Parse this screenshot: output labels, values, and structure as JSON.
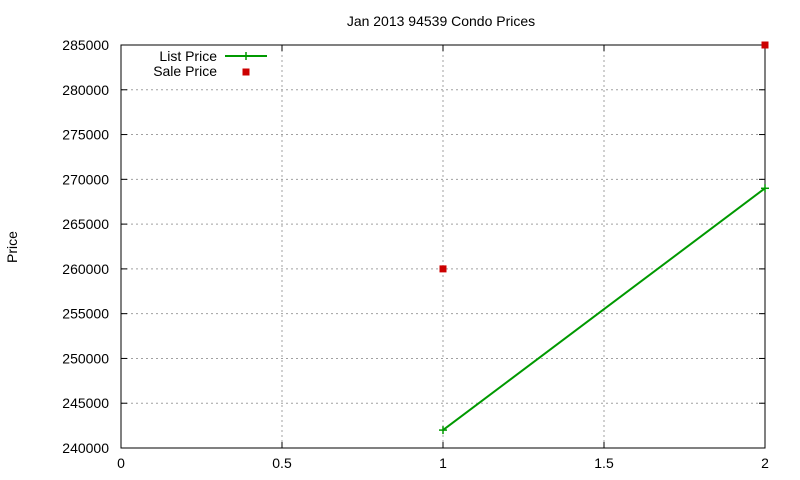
{
  "chart_data": {
    "type": "line",
    "title": "Jan 2013 94539 Condo Prices",
    "xlabel": "",
    "ylabel": "Price",
    "xlim": [
      0,
      2
    ],
    "ylim": [
      240000,
      285000
    ],
    "x_ticks": [
      0,
      0.5,
      1,
      1.5,
      2
    ],
    "x_tick_labels": [
      "0",
      "0.5",
      "1",
      "1.5",
      "2"
    ],
    "y_ticks": [
      240000,
      245000,
      250000,
      255000,
      260000,
      265000,
      270000,
      275000,
      280000,
      285000
    ],
    "y_tick_labels": [
      "240000",
      "245000",
      "250000",
      "255000",
      "260000",
      "265000",
      "270000",
      "275000",
      "280000",
      "285000"
    ],
    "grid": true,
    "legend_position": "top-left",
    "series": [
      {
        "name": "List Price",
        "style": "linespoints",
        "marker": "plus",
        "color": "#009900",
        "points": [
          [
            1,
            242000
          ],
          [
            2,
            269000
          ]
        ]
      },
      {
        "name": "Sale Price",
        "style": "points",
        "marker": "square",
        "color": "#cc0000",
        "points": [
          [
            1,
            260000
          ],
          [
            2,
            285000
          ]
        ]
      }
    ]
  }
}
